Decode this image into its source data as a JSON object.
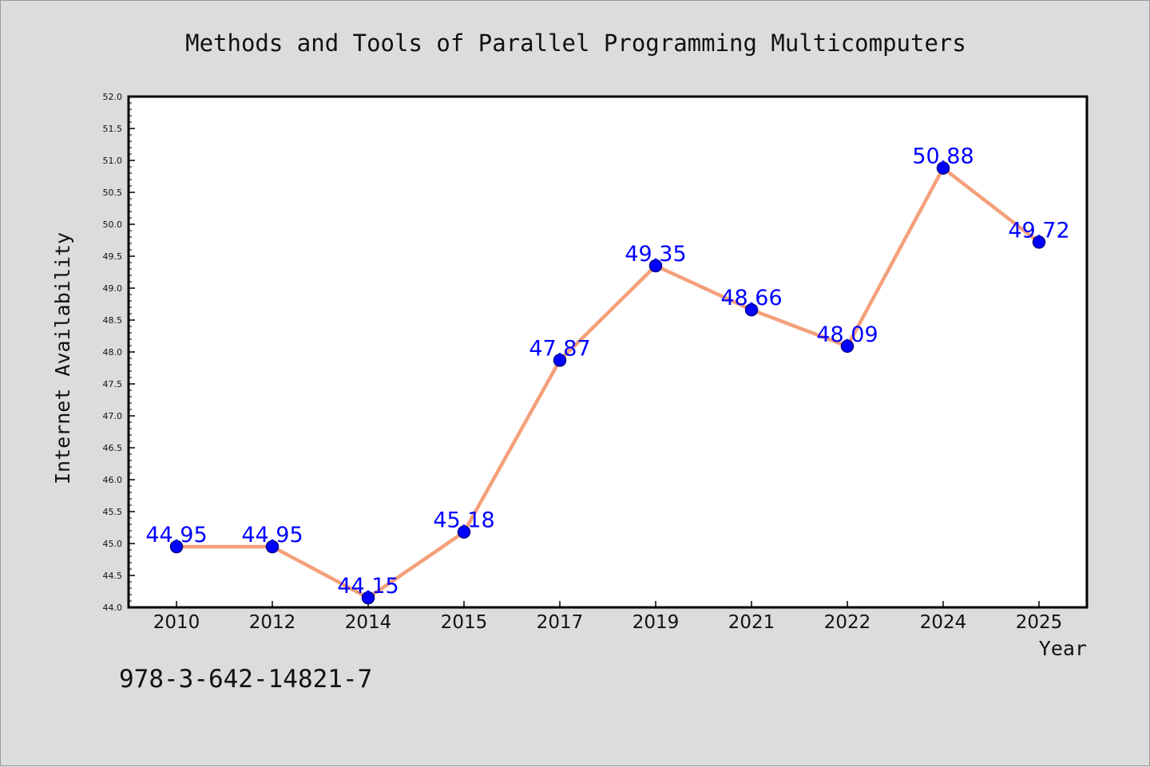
{
  "chart_data": {
    "type": "line",
    "title": "Methods and Tools of Parallel Programming Multicomputers",
    "xlabel": "Year",
    "ylabel": "Internet Availability",
    "categories": [
      "2010",
      "2012",
      "2014",
      "2015",
      "2017",
      "2019",
      "2021",
      "2022",
      "2024",
      "2025"
    ],
    "series": [
      {
        "values": [
          44.95,
          44.95,
          44.15,
          45.18,
          47.87,
          49.35,
          48.66,
          48.09,
          50.88,
          49.72
        ]
      }
    ],
    "data_labels": [
      "44.95",
      "44.95",
      "44.15",
      "45.18",
      "47.87",
      "49.35",
      "48.66",
      "48.09",
      "50.88",
      "49.72"
    ],
    "y_ticks": [
      "44.0",
      "44.5",
      "45.0",
      "45.5",
      "46.0",
      "46.5",
      "47.0",
      "47.5",
      "48.0",
      "48.5",
      "49.0",
      "49.5",
      "50.0",
      "50.5",
      "51.0",
      "51.5",
      "52.0"
    ],
    "ylim": [
      44.0,
      52.0
    ],
    "grid": false,
    "legend": "none",
    "colors": {
      "line": "#f4a07a",
      "marker": "#0000ff",
      "marker_edge": "#00008b",
      "data_label": "#0000ff",
      "plot_background": "#ffffff",
      "page_background": "#dcdcdc"
    }
  },
  "footer": {
    "isbn": "978-3-642-14821-7"
  }
}
